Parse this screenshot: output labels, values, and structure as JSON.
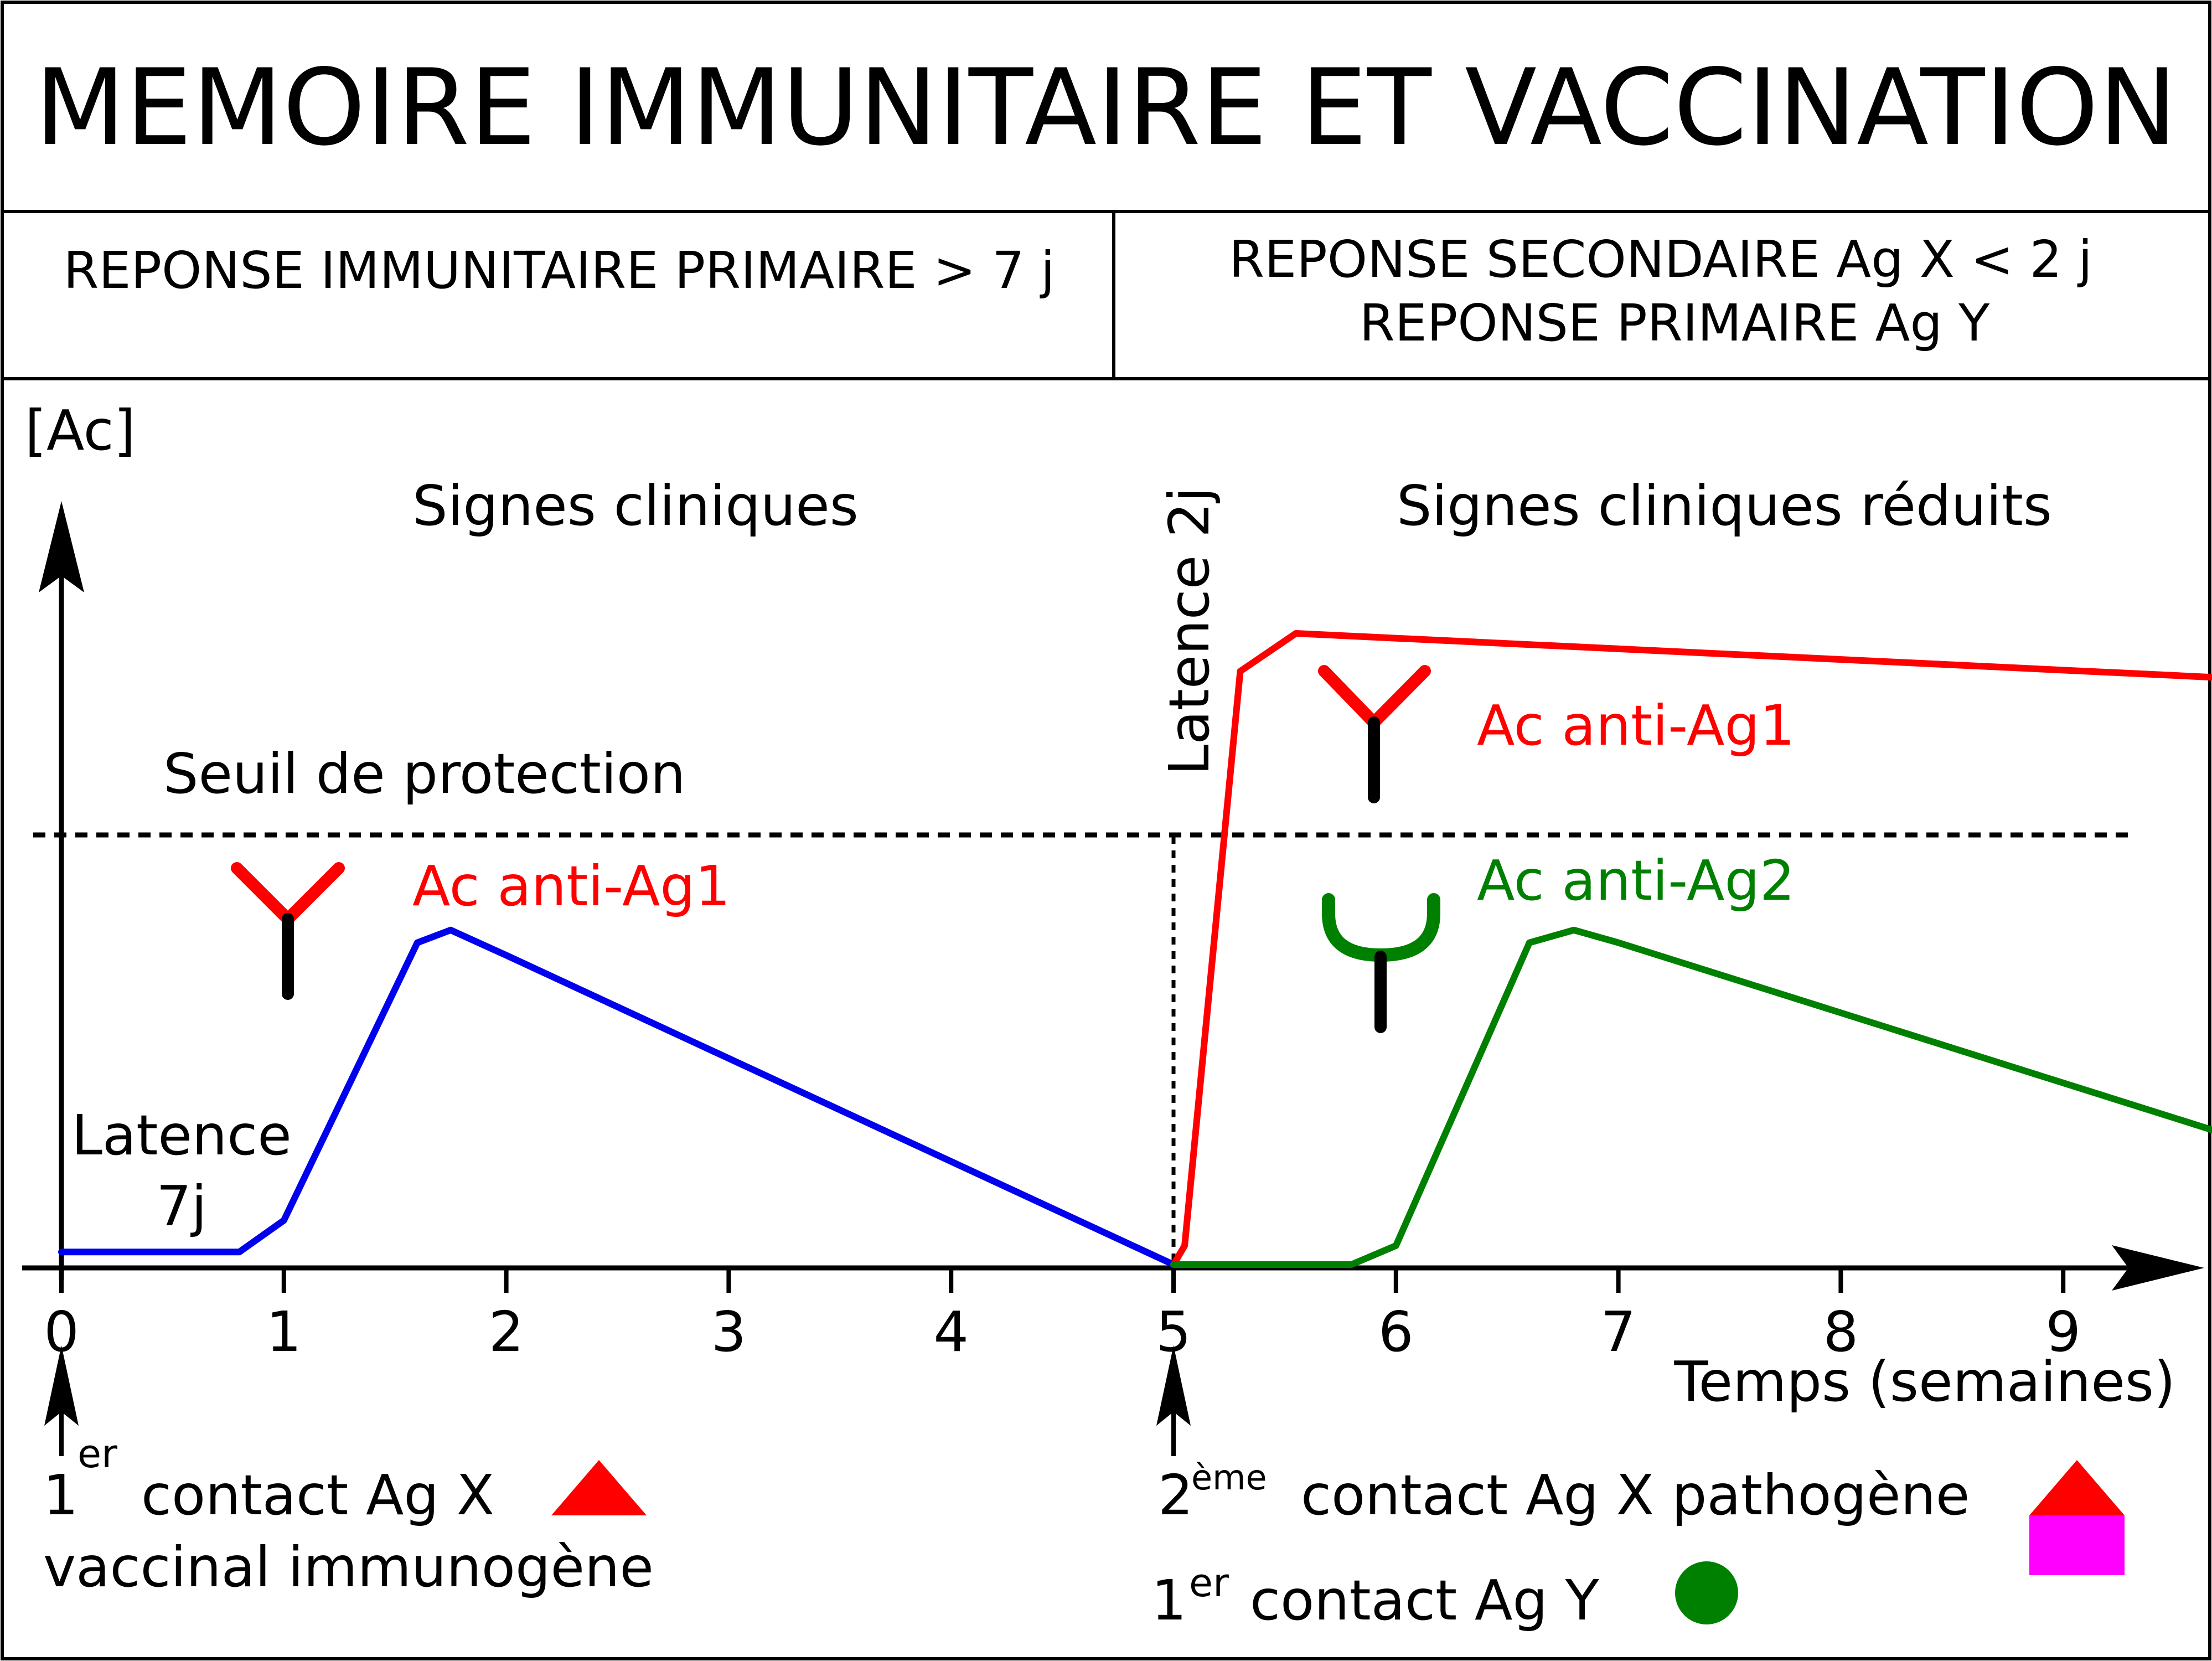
{
  "title": "MEMOIRE IMMUNITAIRE ET VACCINATION",
  "header": {
    "left": "REPONSE IMMUNITAIRE PRIMAIRE > 7 j",
    "right_line1": "REPONSE SECONDAIRE Ag X < 2 j",
    "right_line2": "REPONSE PRIMAIRE Ag Y"
  },
  "labels": {
    "y_axis": "[Ac]",
    "x_axis": "Temps (semaines)",
    "signes_cliniques": "Signes cliniques",
    "signes_cliniques_reduits": "Signes cliniques réduits",
    "latence_2j": "Latence 2j",
    "latence_7j_line1": "Latence",
    "latence_7j_line2": "7j",
    "seuil": "Seuil de protection",
    "ac_anti_ag1_primary": "Ac anti-Ag1",
    "ac_anti_ag1_secondary": "Ac anti-Ag1",
    "ac_anti_ag2": "Ac anti-Ag2"
  },
  "contacts": {
    "first_num": "1",
    "first_sup": "er",
    "first_text": "contact Ag X",
    "first_line2": "vaccinal  immunogène",
    "second_num": "2",
    "second_sup": "ème",
    "second_text": "contact Ag X pathogène",
    "third_num": "1",
    "third_sup": "er",
    "third_text": "contact Ag Y"
  },
  "colors": {
    "primary_curve": "#0000ee",
    "secondary_curve": "#ff0000",
    "ag2_curve": "#008000",
    "ag_x_marker": "#ff0000",
    "pathogen_box": "#ff00ff",
    "ag_y_marker": "#008000"
  },
  "chart_data": {
    "type": "line",
    "x_ticks": [
      0,
      1,
      2,
      3,
      4,
      5,
      6,
      7,
      8,
      9
    ],
    "xlabel": "Temps (semaines)",
    "ylabel": "[Ac]",
    "threshold_label": "Seuil de protection",
    "series": [
      {
        "name": "Ac anti-Ag1",
        "color": "#0000ee",
        "points": [
          [
            0,
            0.02
          ],
          [
            0.8,
            0.02
          ],
          [
            1.0,
            0.07
          ],
          [
            1.6,
            0.51
          ],
          [
            1.75,
            0.53
          ],
          [
            2.0,
            0.49
          ],
          [
            5.0,
            0.0
          ]
        ]
      },
      {
        "name": "Ac anti-Ag1",
        "color": "#ff0000",
        "points": [
          [
            5.0,
            0.0
          ],
          [
            5.05,
            0.03
          ],
          [
            5.3,
            0.94
          ],
          [
            5.55,
            1.0
          ],
          [
            9.7,
            0.93
          ]
        ]
      },
      {
        "name": "Ac anti-Ag2",
        "color": "#008000",
        "points": [
          [
            5.0,
            0.0
          ],
          [
            5.8,
            0.0
          ],
          [
            6.0,
            0.03
          ],
          [
            6.6,
            0.51
          ],
          [
            6.8,
            0.53
          ],
          [
            7.0,
            0.51
          ],
          [
            9.7,
            0.21
          ]
        ]
      }
    ]
  }
}
